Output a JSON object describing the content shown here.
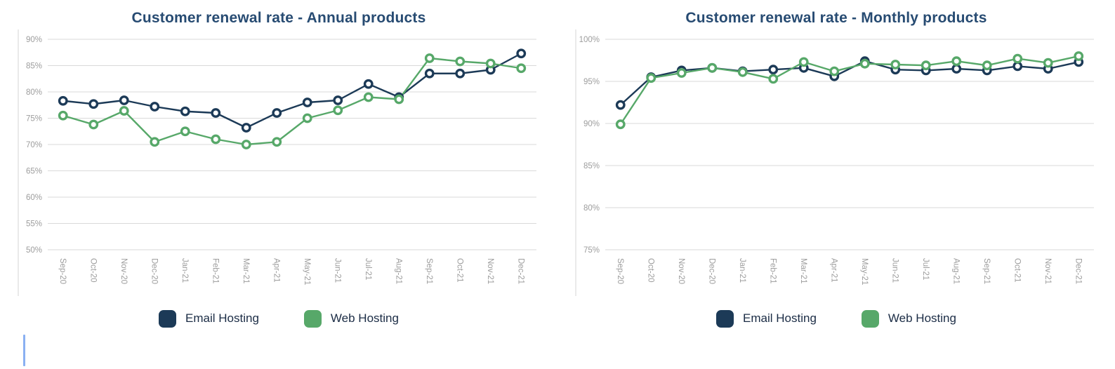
{
  "theme": {
    "background": "#ffffff",
    "title_color": "#274b72",
    "axis_text_color": "#9d9d9d",
    "grid_color": "#d9d9d9",
    "axis_line_color": "#e4e4e4",
    "legend_text_color": "#1b2c45",
    "cursor_color": "#8ab0f2"
  },
  "chart_data": [
    {
      "type": "line",
      "title": "Customer renewal rate - Annual products",
      "categories": [
        "Sep-20",
        "Oct-20",
        "Nov-20",
        "Dec-20",
        "Jan-21",
        "Feb-21",
        "Mar-21",
        "Apr-21",
        "May-21",
        "Jun-21",
        "Jul-21",
        "Aug-21",
        "Sep-21",
        "Oct-21",
        "Nov-21",
        "Dec-21"
      ],
      "series": [
        {
          "name": "Email Hosting",
          "color": "#1c3a57",
          "values": [
            78.3,
            77.7,
            78.4,
            77.2,
            76.3,
            76.0,
            73.2,
            76.0,
            78.0,
            78.4,
            81.5,
            79.0,
            83.5,
            83.5,
            84.2,
            87.3
          ]
        },
        {
          "name": "Web Hosting",
          "color": "#57a869",
          "values": [
            75.5,
            73.8,
            76.4,
            70.5,
            72.5,
            71.0,
            70.0,
            70.5,
            75.0,
            76.5,
            79.0,
            78.6,
            86.4,
            85.8,
            85.4,
            84.5
          ]
        }
      ],
      "xlabel": "",
      "ylabel": "",
      "ylim": [
        50,
        90
      ],
      "yticks": [
        50,
        55,
        60,
        65,
        70,
        75,
        80,
        85,
        90
      ],
      "ytick_suffix": "%",
      "grid": true,
      "legend_position": "bottom"
    },
    {
      "type": "line",
      "title": "Customer renewal rate - Monthly products",
      "categories": [
        "Sep-20",
        "Oct-20",
        "Nov-20",
        "Dec-20",
        "Jan-21",
        "Feb-21",
        "Mar-21",
        "Apr-21",
        "May-21",
        "Jun-21",
        "Jul-21",
        "Aug-21",
        "Sep-21",
        "Oct-21",
        "Nov-21",
        "Dec-21"
      ],
      "series": [
        {
          "name": "Email Hosting",
          "color": "#1c3a57",
          "values": [
            92.2,
            95.5,
            96.3,
            96.6,
            96.2,
            96.4,
            96.6,
            95.6,
            97.4,
            96.4,
            96.3,
            96.5,
            96.3,
            96.8,
            96.5,
            97.3
          ]
        },
        {
          "name": "Web Hosting",
          "color": "#57a869",
          "values": [
            89.9,
            95.4,
            96.0,
            96.6,
            96.1,
            95.3,
            97.3,
            96.2,
            97.1,
            97.0,
            96.9,
            97.4,
            96.9,
            97.7,
            97.2,
            98.0
          ]
        }
      ],
      "xlabel": "",
      "ylabel": "",
      "ylim": [
        75,
        100
      ],
      "yticks": [
        75,
        80,
        85,
        90,
        95,
        100
      ],
      "ytick_suffix": "%",
      "grid": true,
      "legend_position": "bottom"
    }
  ]
}
